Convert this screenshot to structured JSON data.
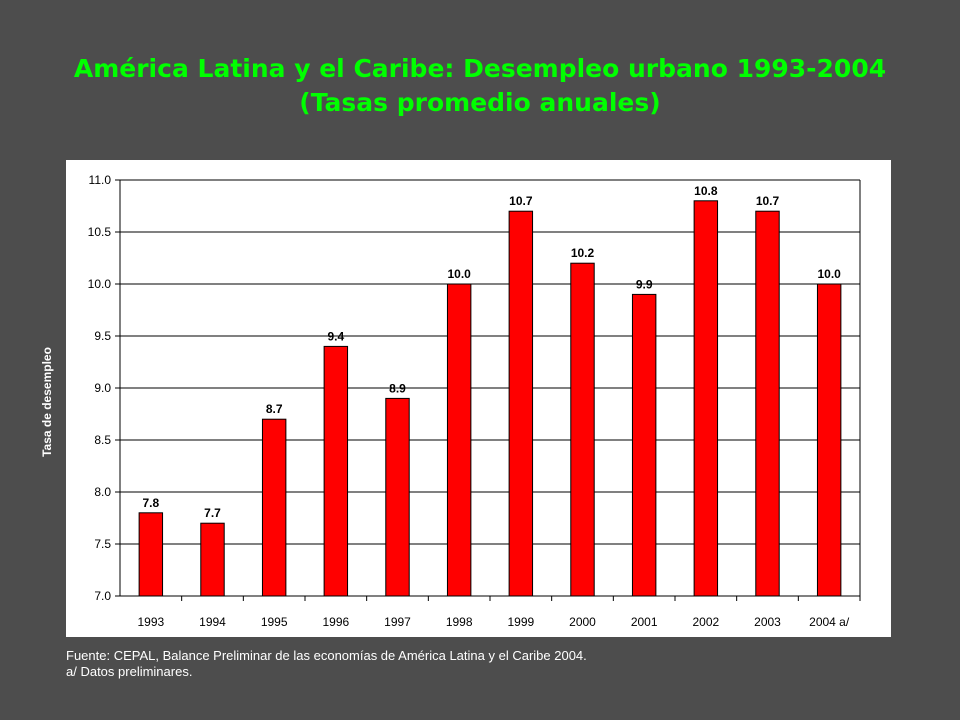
{
  "title": {
    "line1": "América Latina y el Caribe: Desempleo urbano 1993-2004",
    "line2": "(Tasas promedio anuales)"
  },
  "source": {
    "line1": "Fuente: CEPAL, Balance Preliminar de las economías de América Latina y el Caribe 2004.",
    "line2": "a/ Datos preliminares."
  },
  "colors": {
    "background": "#4d4d4d",
    "title": "#00ff00",
    "bar": "#ff0000"
  },
  "chart_data": {
    "type": "bar",
    "ylabel": "Tasa de desempleo",
    "xlabel": "",
    "categories": [
      "1993",
      "1994",
      "1995",
      "1996",
      "1997",
      "1998",
      "1999",
      "2000",
      "2001",
      "2002",
      "2003",
      "2004 a/"
    ],
    "values": [
      7.8,
      7.7,
      8.7,
      9.4,
      8.9,
      10.0,
      10.7,
      10.2,
      9.9,
      10.8,
      10.7,
      10.0
    ],
    "data_labels": [
      "7.8",
      "7.7",
      "8.7",
      "9.4",
      "8.9",
      "10.0",
      "10.7",
      "10.2",
      "9.9",
      "10.8",
      "10.7",
      "10.0"
    ],
    "yticks": [
      "7.0",
      "7.5",
      "8.0",
      "8.5",
      "9.0",
      "9.5",
      "10.0",
      "10.5",
      "11.0"
    ],
    "ylim": [
      7.0,
      11.0
    ],
    "grid": true,
    "legend": "none"
  }
}
